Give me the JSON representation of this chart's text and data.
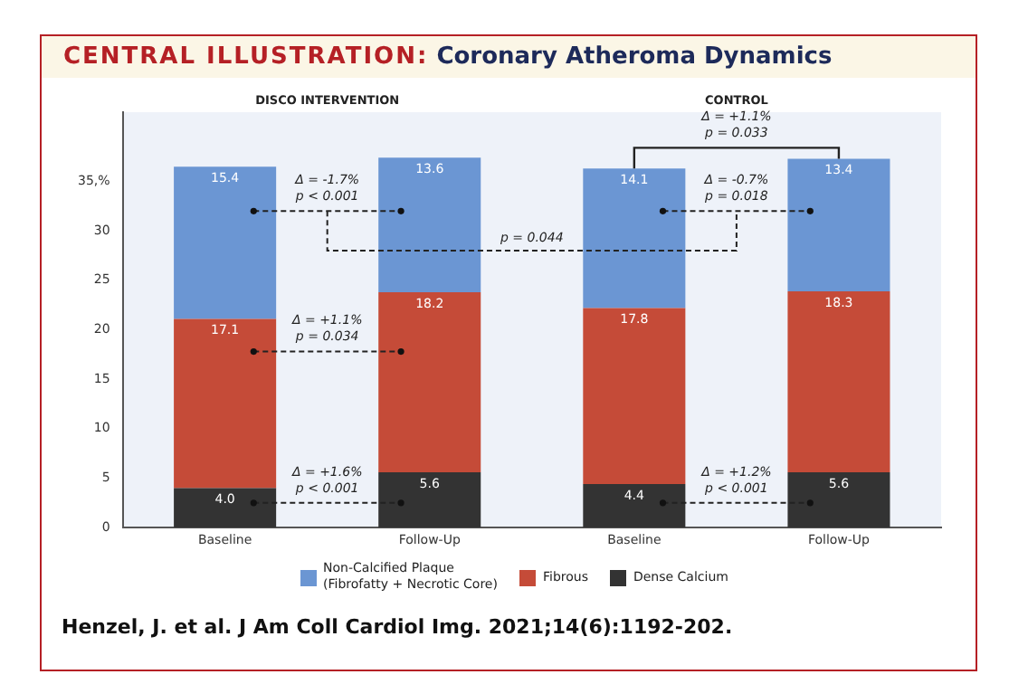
{
  "chart_data": {
    "type": "bar",
    "stacked": true,
    "title": "CENTRAL ILLUSTRATION: Coronary Atheroma Dynamics",
    "categories": [
      "Baseline",
      "Follow-Up",
      "Baseline",
      "Follow-Up"
    ],
    "series": [
      {
        "name": "Dense Calcium",
        "color": "#333333",
        "values": [
          4.0,
          5.6,
          4.4,
          5.6
        ],
        "value_labels": [
          "4.0",
          "5.6",
          "4.4",
          "5.6"
        ]
      },
      {
        "name": "Fibrous",
        "color": "#c54b38",
        "values": [
          17.1,
          18.2,
          17.8,
          18.3
        ],
        "value_labels": [
          "17.1",
          "18.2",
          "17.8",
          "18.3"
        ]
      },
      {
        "name": "Non-Calcified Plaque\n(Fibrofatty + Necrotic Core)",
        "color": "#6b96d3",
        "values": [
          15.4,
          13.6,
          14.1,
          13.4
        ],
        "value_labels": [
          "15.4",
          "13.6",
          "14.1",
          "13.4"
        ]
      }
    ],
    "ylim": [
      0,
      42
    ],
    "yticks": [
      0,
      5,
      10,
      15,
      20,
      25,
      30,
      {
        "value": 35,
        "label": "35,%"
      }
    ],
    "grid": false,
    "legend": "bottom",
    "annotations": [
      "DISCO INTERVENTION",
      "CONTROL",
      "Δ = -1.7%\np < 0.001",
      "Δ = +1.1%\np = 0.034",
      "Δ = +1.6%\np < 0.001",
      "p = 0.044",
      "Δ = +1.1%\np = 0.033",
      "Δ = -0.7%\np = 0.018",
      "Δ = +1.2%\np < 0.001",
      "Henzel, J. et al. J Am Coll Cardiol Img. 2021;14(6):1192-202."
    ]
  }
}
